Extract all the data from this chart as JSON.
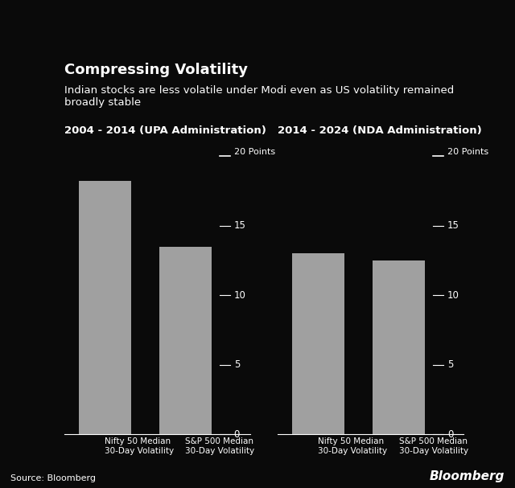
{
  "title": "Compressing Volatility",
  "subtitle": "Indian stocks are less volatile under Modi even as US volatility remained\nbroadly stable",
  "background_color": "#0a0a0a",
  "text_color": "#ffffff",
  "bar_color": "#a0a0a0",
  "source": "Source: Bloomberg",
  "bloomberg_label": "Bloomberg",
  "panels": [
    {
      "subtitle": "2004 - 2014 (UPA Administration)",
      "bars": [
        {
          "label": "Nifty 50 Median\n30-Day Volatility",
          "value": 18.2
        },
        {
          "label": "S&P 500 Median\n30-Day Volatility",
          "value": 13.5
        }
      ],
      "yticks": [
        0,
        5,
        10,
        15,
        20
      ],
      "ylim": [
        0,
        21
      ],
      "ytick_label": "20 Points"
    },
    {
      "subtitle": "2014 - 2024 (NDA Administration)",
      "bars": [
        {
          "label": "Nifty 50 Median\n30-Day Volatility",
          "value": 13.0
        },
        {
          "label": "S&P 500 Median\n30-Day Volatility",
          "value": 12.5
        }
      ],
      "yticks": [
        0,
        5,
        10,
        15,
        20
      ],
      "ylim": [
        0,
        21
      ],
      "ytick_label": "20 Points"
    }
  ]
}
